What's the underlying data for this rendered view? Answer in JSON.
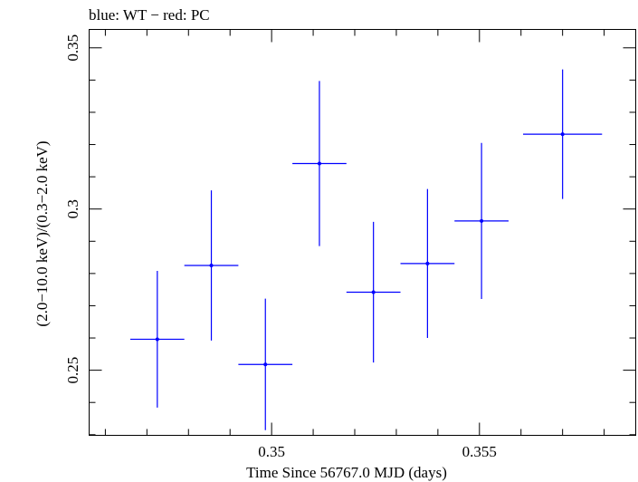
{
  "chart_data": {
    "type": "scatter",
    "title": "blue: WT − red: PC",
    "xlabel": "Time Since 56767.0 MJD (days)",
    "ylabel": "(2.0−10.0 keV)/(0.3−2.0 keV)",
    "xlim": [
      0.34561,
      0.35876
    ],
    "ylim": [
      0.2298,
      0.3557
    ],
    "x_ticks": [
      {
        "value": 0.35,
        "label": "0.35"
      },
      {
        "value": 0.355,
        "label": "0.355"
      }
    ],
    "y_ticks": [
      {
        "value": 0.25,
        "label": "0.25"
      },
      {
        "value": 0.3,
        "label": "0.3"
      },
      {
        "value": 0.35,
        "label": "0.35"
      }
    ],
    "grid": false,
    "series": [
      {
        "color": "#0000ff",
        "points": [
          {
            "x": 0.34725,
            "xerr": 0.00065,
            "y": 0.2596,
            "yerr": 0.0212
          },
          {
            "x": 0.34855,
            "xerr": 0.00065,
            "y": 0.2825,
            "yerr": 0.0233
          },
          {
            "x": 0.34985,
            "xerr": 0.00065,
            "y": 0.2518,
            "yerr": 0.0204
          },
          {
            "x": 0.35115,
            "xerr": 0.00065,
            "y": 0.3141,
            "yerr": 0.0256
          },
          {
            "x": 0.35245,
            "xerr": 0.00065,
            "y": 0.2742,
            "yerr": 0.0218
          },
          {
            "x": 0.35375,
            "xerr": 0.00065,
            "y": 0.2831,
            "yerr": 0.0231
          },
          {
            "x": 0.35505,
            "xerr": 0.00065,
            "y": 0.2963,
            "yerr": 0.0242
          },
          {
            "x": 0.357,
            "xerr": 0.00095,
            "y": 0.3232,
            "yerr": 0.0201
          }
        ]
      }
    ]
  }
}
